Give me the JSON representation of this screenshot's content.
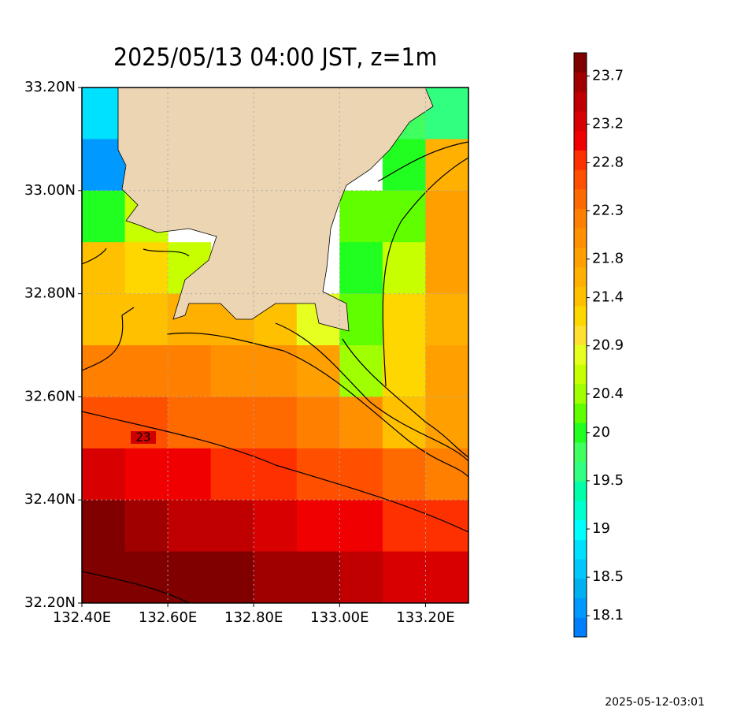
{
  "chart_data": {
    "type": "heatmap",
    "title": "2025/05/13 04:00 JST, z=1m",
    "xlim": [
      132.4,
      133.3
    ],
    "ylim": [
      32.2,
      33.2
    ],
    "xticks": [
      {
        "value": 132.4,
        "label": "132.40E"
      },
      {
        "value": 132.6,
        "label": "132.60E"
      },
      {
        "value": 132.8,
        "label": "132.80E"
      },
      {
        "value": 133.0,
        "label": "133.00E"
      },
      {
        "value": 133.2,
        "label": "133.20E"
      }
    ],
    "yticks": [
      {
        "value": 32.2,
        "label": "32.20N"
      },
      {
        "value": 32.4,
        "label": "32.40N"
      },
      {
        "value": 32.6,
        "label": "32.60N"
      },
      {
        "value": 32.8,
        "label": "32.80N"
      },
      {
        "value": 33.0,
        "label": "33.00N"
      },
      {
        "value": 33.2,
        "label": "33.20N"
      }
    ],
    "grid": true,
    "x": [
      132.45,
      132.55,
      132.65,
      132.75,
      132.85,
      132.95,
      133.05,
      133.15,
      133.25
    ],
    "y": [
      33.15,
      33.05,
      32.95,
      32.85,
      32.75,
      32.65,
      32.55,
      32.45,
      32.35,
      32.25
    ],
    "z": [
      [
        18.7,
        null,
        null,
        null,
        null,
        null,
        null,
        19.9,
        19.6
      ],
      [
        18.2,
        null,
        null,
        null,
        null,
        null,
        null,
        20.1,
        21.6
      ],
      [
        20.0,
        20.6,
        null,
        null,
        null,
        null,
        20.3,
        20.2,
        21.8
      ],
      [
        21.4,
        21.3,
        20.6,
        null,
        null,
        null,
        20.1,
        20.6,
        21.8
      ],
      [
        21.5,
        21.4,
        21.6,
        21.7,
        21.5,
        20.8,
        20.2,
        21.2,
        21.7
      ],
      [
        22.2,
        22.3,
        22.2,
        22.1,
        22.1,
        21.8,
        20.4,
        21.3,
        21.8
      ],
      [
        22.6,
        22.6,
        22.5,
        22.4,
        22.4,
        22.3,
        22.0,
        21.5,
        21.8
      ],
      [
        23.2,
        23.1,
        23.0,
        22.9,
        22.8,
        22.7,
        22.6,
        22.4,
        22.3
      ],
      [
        23.8,
        23.6,
        23.5,
        23.4,
        23.3,
        23.1,
        23.0,
        22.9,
        22.8
      ],
      [
        23.9,
        23.9,
        23.9,
        23.8,
        23.7,
        23.6,
        23.4,
        23.3,
        23.2
      ]
    ],
    "clim": [
      17.88,
      23.94
    ],
    "colors": [
      "#0080ff",
      "#0099ff",
      "#00b0f0",
      "#00c8ff",
      "#00e0ff",
      "#00ffff",
      "#00ffd0",
      "#00ffa8",
      "#30ff80",
      "#40ff60",
      "#20ff20",
      "#60ff00",
      "#a0ff00",
      "#c8ff00",
      "#e6ff20",
      "#ffe030",
      "#ffd700",
      "#ffc000",
      "#ffb000",
      "#ffa000",
      "#ff9000",
      "#ff8000",
      "#ff6a00",
      "#ff5000",
      "#ff3000",
      "#f00000",
      "#d80000",
      "#c00000",
      "#a00000",
      "#800000"
    ],
    "colorbar_ticks": [
      18.1,
      18.5,
      19.0,
      19.5,
      20.0,
      20.4,
      20.9,
      21.4,
      21.8,
      22.3,
      22.8,
      23.2,
      23.7
    ],
    "contour_label": 23,
    "timestamp": "2025-05-12-03:01"
  }
}
